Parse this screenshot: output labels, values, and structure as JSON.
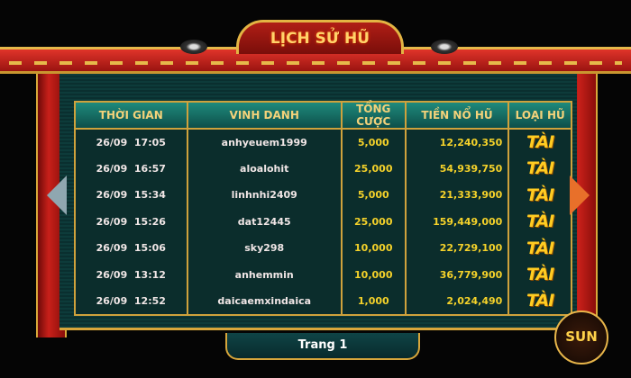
{
  "title": "LỊCH SỬ HŨ",
  "columns": [
    "THỜI GIAN",
    "VINH DANH",
    "TỔNG CƯỢC",
    "TIỀN NỔ HŨ",
    "LOẠI HŨ"
  ],
  "rows": [
    {
      "time": "26/09  17:05",
      "name": "anhyeuem1999",
      "bet": "5,000",
      "jackpot": "12,240,350",
      "type": "TÀI"
    },
    {
      "time": "26/09  16:57",
      "name": "aloalohit",
      "bet": "25,000",
      "jackpot": "54,939,750",
      "type": "TÀI"
    },
    {
      "time": "26/09  15:34",
      "name": "linhnhi2409",
      "bet": "5,000",
      "jackpot": "21,333,900",
      "type": "TÀI"
    },
    {
      "time": "26/09  15:26",
      "name": "dat12445",
      "bet": "25,000",
      "jackpot": "159,449,000",
      "type": "TÀI"
    },
    {
      "time": "26/09  15:06",
      "name": "sky298",
      "bet": "10,000",
      "jackpot": "22,729,100",
      "type": "TÀI"
    },
    {
      "time": "26/09  13:12",
      "name": "anhemmin",
      "bet": "10,000",
      "jackpot": "36,779,900",
      "type": "TÀI"
    },
    {
      "time": "26/09  12:52",
      "name": "daicaemxindaica",
      "bet": "1,000",
      "jackpot": "2,024,490",
      "type": "TÀI"
    }
  ],
  "pagination": {
    "label": "Trang 1"
  },
  "logo": {
    "text": "SUN"
  },
  "icons": {
    "prev": "chevron-left-icon",
    "next": "chevron-right-icon"
  },
  "colors": {
    "gold": "#f5d22a",
    "panel": "#0b2d2c",
    "frame": "#c8201a"
  }
}
